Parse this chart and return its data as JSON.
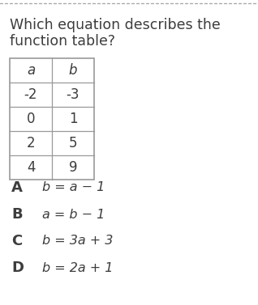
{
  "title_line1": "Which equation describes the",
  "title_line2": "function table?",
  "table_headers": [
    "a",
    "b"
  ],
  "table_data": [
    [
      "-2",
      "-3"
    ],
    [
      "0",
      "1"
    ],
    [
      "2",
      "5"
    ],
    [
      "4",
      "9"
    ]
  ],
  "options": [
    [
      "A",
      "b = a − 1"
    ],
    [
      "B",
      "a = b − 1"
    ],
    [
      "C",
      "b = 3a + 3"
    ],
    [
      "D",
      "b = 2a + 1"
    ]
  ],
  "bg_color": "#ffffff",
  "text_color": "#3d3d3d",
  "border_color": "#999999",
  "dotted_line_color": "#aaaaaa",
  "title_fontsize": 12.5,
  "table_header_fontsize": 12,
  "table_data_fontsize": 12,
  "option_letter_fontsize": 13,
  "option_text_fontsize": 11.5
}
